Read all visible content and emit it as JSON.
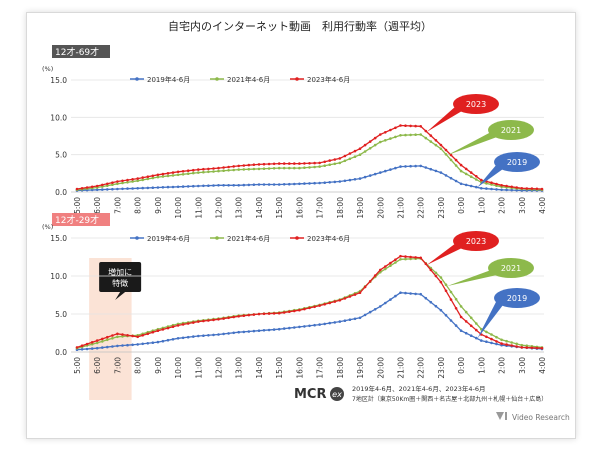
{
  "title": "自宅内のインターネット動画　利用行動率（週平均）",
  "footer": {
    "brand": "MCR",
    "brand_suffix": "ex",
    "note_line1": "2019年4-6月、2021年4-6月、2023年4-6月",
    "note_line2": "7地区計（東京50Km圏＋関西＋名古屋＋北部九州＋札幌＋仙台＋広島）",
    "company": "Video Research"
  },
  "colors": {
    "s2019": "#4472C4",
    "s2021": "#8DB94B",
    "s2023": "#E02020",
    "panel2_tag": "#F08080",
    "highlight_band": "#FBE3D6",
    "callout_box": "#1a1a1a"
  },
  "callout": {
    "line1": "増加に",
    "line2": "特徴"
  },
  "chart_data": [
    {
      "type": "line",
      "panel_label": "12才-69才",
      "ylabel": "(%)",
      "ylim": [
        0,
        15
      ],
      "yticks": [
        "0.0",
        "5.0",
        "10.0",
        "15.0"
      ],
      "categories": [
        "5:00",
        "6:00",
        "7:00",
        "8:00",
        "9:00",
        "10:00",
        "11:00",
        "12:00",
        "13:00",
        "14:00",
        "15:00",
        "16:00",
        "17:00",
        "18:00",
        "19:00",
        "20:00",
        "21:00",
        "22:00",
        "23:00",
        "0:00",
        "1:00",
        "2:00",
        "3:00",
        "4:00"
      ],
      "legend": [
        "2019年4-6月",
        "2021年4-6月",
        "2023年4-6月"
      ],
      "grid": true,
      "series": [
        {
          "name": "2019年4-6月",
          "label": "2019",
          "values": [
            0.2,
            0.3,
            0.4,
            0.5,
            0.6,
            0.7,
            0.8,
            0.9,
            0.9,
            1.0,
            1.0,
            1.1,
            1.2,
            1.4,
            1.8,
            2.6,
            3.4,
            3.5,
            2.6,
            1.1,
            0.5,
            0.3,
            0.2,
            0.2
          ]
        },
        {
          "name": "2021年4-6月",
          "label": "2021",
          "values": [
            0.3,
            0.6,
            1.1,
            1.5,
            2.0,
            2.3,
            2.6,
            2.8,
            3.0,
            3.1,
            3.2,
            3.2,
            3.4,
            3.9,
            5.0,
            6.7,
            7.6,
            7.7,
            5.8,
            2.8,
            1.3,
            0.7,
            0.4,
            0.3
          ]
        },
        {
          "name": "2023年4-6月",
          "label": "2023",
          "values": [
            0.4,
            0.8,
            1.4,
            1.8,
            2.3,
            2.7,
            3.0,
            3.2,
            3.5,
            3.7,
            3.8,
            3.8,
            3.9,
            4.5,
            5.8,
            7.7,
            8.9,
            8.8,
            6.3,
            3.6,
            1.6,
            0.9,
            0.5,
            0.4
          ]
        }
      ]
    },
    {
      "type": "line",
      "panel_label": "12才-29才",
      "ylabel": "(%)",
      "ylim": [
        0,
        15
      ],
      "yticks": [
        "0.0",
        "5.0",
        "10.0",
        "15.0"
      ],
      "categories": [
        "5:00",
        "6:00",
        "7:00",
        "8:00",
        "9:00",
        "10:00",
        "11:00",
        "12:00",
        "13:00",
        "14:00",
        "15:00",
        "16:00",
        "17:00",
        "18:00",
        "19:00",
        "20:00",
        "21:00",
        "22:00",
        "23:00",
        "0:00",
        "1:00",
        "2:00",
        "3:00",
        "4:00"
      ],
      "legend": [
        "2019年4-6月",
        "2021年4-6月",
        "2023年4-6月"
      ],
      "grid": true,
      "series": [
        {
          "name": "2019年4-6月",
          "label": "2019",
          "values": [
            0.3,
            0.5,
            0.8,
            1.0,
            1.3,
            1.8,
            2.1,
            2.3,
            2.6,
            2.8,
            3.0,
            3.3,
            3.6,
            4.0,
            4.5,
            6.0,
            7.8,
            7.6,
            5.5,
            2.8,
            1.5,
            0.9,
            0.6,
            0.4
          ]
        },
        {
          "name": "2021年4-6月",
          "label": "2021",
          "values": [
            0.5,
            1.2,
            2.0,
            2.2,
            3.0,
            3.7,
            4.1,
            4.4,
            4.8,
            5.0,
            5.2,
            5.6,
            6.2,
            6.9,
            8.0,
            10.5,
            12.2,
            12.3,
            9.8,
            6.0,
            3.0,
            1.6,
            0.9,
            0.6
          ]
        },
        {
          "name": "2023年4-6月",
          "label": "2023",
          "values": [
            0.6,
            1.5,
            2.4,
            2.0,
            2.8,
            3.5,
            4.0,
            4.3,
            4.7,
            5.0,
            5.1,
            5.5,
            6.1,
            6.8,
            7.8,
            10.8,
            12.6,
            12.4,
            9.2,
            4.6,
            2.3,
            1.1,
            0.6,
            0.5
          ]
        }
      ]
    }
  ]
}
